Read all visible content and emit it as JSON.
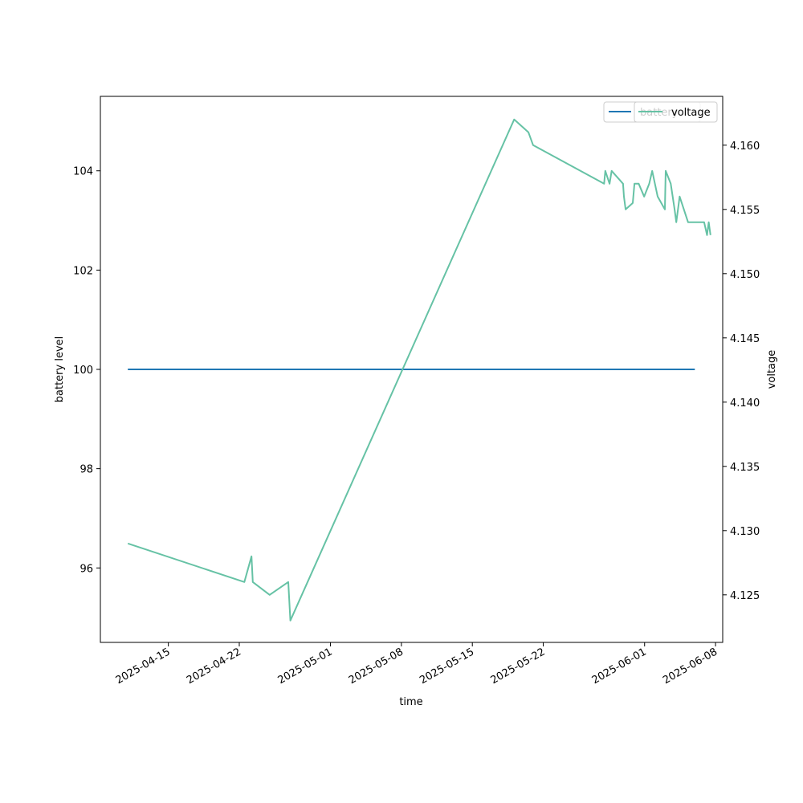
{
  "chart_data": {
    "type": "line",
    "title": "",
    "xlabel": "time",
    "ylabel_left": "battery level",
    "ylabel_right": "voltage",
    "xlim": [
      "2025-04-08T07:00",
      "2025-06-08T17:00"
    ],
    "ylim_left": [
      94.5,
      105.5
    ],
    "ylim_right": [
      4.1213,
      4.1638
    ],
    "x_ticks": [
      "2025-04-15",
      "2025-04-22",
      "2025-05-01",
      "2025-05-08",
      "2025-05-15",
      "2025-05-22",
      "2025-06-01",
      "2025-06-08"
    ],
    "y_ticks_left": [
      96,
      98,
      100,
      102,
      104
    ],
    "y_ticks_right": [
      "4.125",
      "4.130",
      "4.135",
      "4.140",
      "4.145",
      "4.150",
      "4.155",
      "4.160"
    ],
    "grid": false,
    "series": [
      {
        "name": "battery",
        "axis": "left",
        "color": "#1f77b4",
        "points": [
          [
            "2025-04-11T00:00",
            100
          ],
          [
            "2025-06-05T23:00",
            100
          ]
        ]
      },
      {
        "name": "voltage",
        "axis": "right",
        "color": "#66c2a5",
        "points": [
          [
            "2025-04-11T00:00",
            4.129
          ],
          [
            "2025-04-22T12:00",
            4.126
          ],
          [
            "2025-04-23T05:00",
            4.128
          ],
          [
            "2025-04-23T08:00",
            4.126
          ],
          [
            "2025-04-25T00:00",
            4.125
          ],
          [
            "2025-04-26T20:00",
            4.126
          ],
          [
            "2025-04-27T01:00",
            4.123
          ],
          [
            "2025-05-19T03:00",
            4.162
          ],
          [
            "2025-05-20T13:00",
            4.161
          ],
          [
            "2025-05-21T00:00",
            4.16
          ],
          [
            "2025-05-28T00:00",
            4.157
          ],
          [
            "2025-05-28T03:00",
            4.158
          ],
          [
            "2025-05-28T13:00",
            4.157
          ],
          [
            "2025-05-28T18:00",
            4.158
          ],
          [
            "2025-05-29T21:00",
            4.157
          ],
          [
            "2025-05-29T23:00",
            4.156
          ],
          [
            "2025-05-30T03:00",
            4.155
          ],
          [
            "2025-05-30T20:00",
            4.1555
          ],
          [
            "2025-05-31T00:00",
            4.157
          ],
          [
            "2025-05-31T10:00",
            4.157
          ],
          [
            "2025-05-31T23:00",
            4.156
          ],
          [
            "2025-06-01T11:00",
            4.157
          ],
          [
            "2025-06-01T18:00",
            4.158
          ],
          [
            "2025-06-02T07:00",
            4.156
          ],
          [
            "2025-06-03T00:00",
            4.155
          ],
          [
            "2025-06-03T02:00",
            4.158
          ],
          [
            "2025-06-03T14:00",
            4.157
          ],
          [
            "2025-06-03T23:00",
            4.155
          ],
          [
            "2025-06-04T03:00",
            4.154
          ],
          [
            "2025-06-04T11:00",
            4.156
          ],
          [
            "2025-06-05T07:00",
            4.154
          ],
          [
            "2025-06-06T21:00",
            4.154
          ],
          [
            "2025-06-07T04:00",
            4.153
          ],
          [
            "2025-06-07T08:00",
            4.154
          ],
          [
            "2025-06-07T12:00",
            4.153
          ]
        ]
      }
    ],
    "legends": [
      {
        "placement": "upper-right",
        "items": [
          "battery"
        ]
      },
      {
        "placement": "upper-right",
        "items": [
          "voltage"
        ]
      }
    ]
  }
}
